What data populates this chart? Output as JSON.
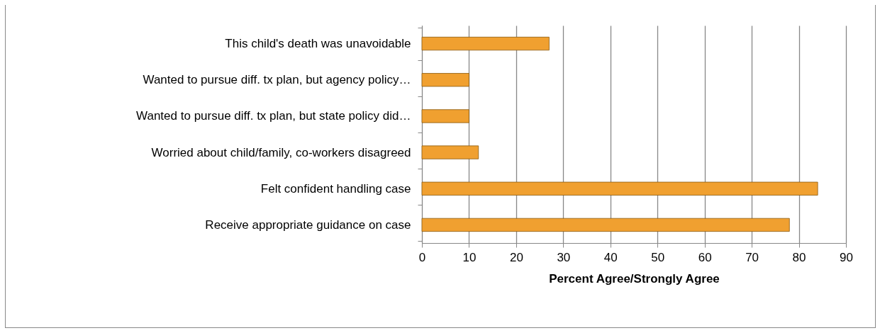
{
  "chart_data": {
    "type": "bar",
    "orientation": "horizontal",
    "xlabel": "Percent Agree/Strongly Agree",
    "categories": [
      "This child's death was unavoidable",
      "Wanted to pursue diff. tx plan, but agency policy…",
      "Wanted to pursue diff. tx plan, but state policy did…",
      "Worried about child/family, co-workers disagreed",
      "Felt confident handling case",
      "Receive appropriate guidance on case"
    ],
    "values": [
      27,
      10,
      10,
      12,
      84,
      78
    ],
    "color": "#f0a030",
    "xlim": [
      0,
      90
    ],
    "xticks": [
      0,
      10,
      20,
      30,
      40,
      50,
      60,
      70,
      80,
      90
    ],
    "grid": "x"
  }
}
